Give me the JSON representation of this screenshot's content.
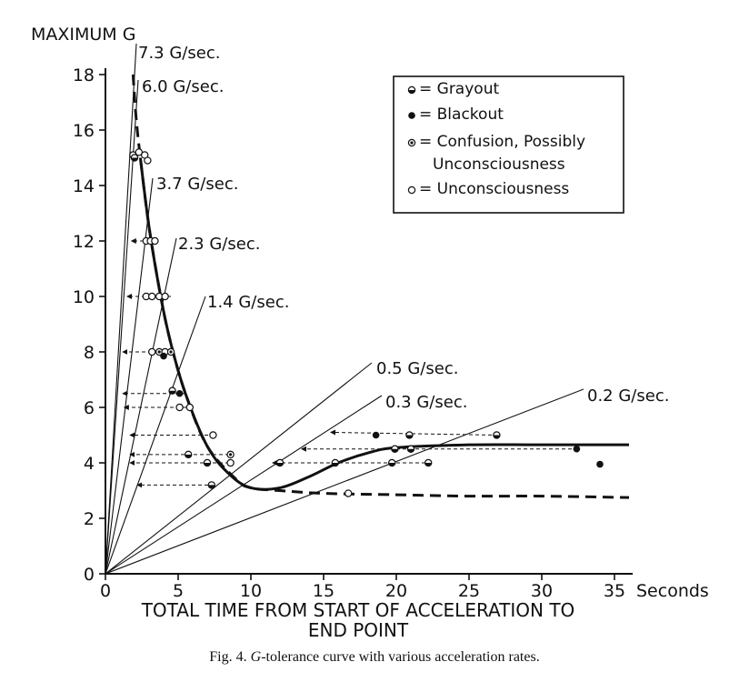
{
  "chart_data": {
    "type": "line",
    "ylabel": "MAXIMUM G",
    "xlabel": "TOTAL TIME FROM START OF ACCELERATION TO END POINT",
    "x_unit_label": "Seconds",
    "xlim": [
      0,
      35
    ],
    "ylim": [
      0,
      18
    ],
    "x_ticks": [
      0,
      5,
      10,
      15,
      20,
      25,
      30,
      35
    ],
    "y_ticks": [
      0,
      2,
      4,
      6,
      8,
      10,
      12,
      14,
      16,
      18
    ],
    "rate_lines": [
      {
        "label": "7.3 G/sec.",
        "rate": 7.3
      },
      {
        "label": "6.0 G/sec.",
        "rate": 6.0
      },
      {
        "label": "3.7 G/sec.",
        "rate": 3.7
      },
      {
        "label": "2.3 G/sec.",
        "rate": 2.3
      },
      {
        "label": "1.4 G/sec.",
        "rate": 1.4
      },
      {
        "label": "0.5 G/sec.",
        "rate": 0.5
      },
      {
        "label": "0.3 G/sec.",
        "rate": 0.3
      },
      {
        "label": "0.2 G/sec.",
        "rate": 0.2
      }
    ],
    "series": [
      {
        "name": "Tolerance curve (rapid onset, dashed)",
        "style": "dashed",
        "points": [
          [
            1.9,
            18
          ],
          [
            2.1,
            16.5
          ],
          [
            2.4,
            15
          ],
          [
            3.0,
            12.5
          ],
          [
            3.8,
            10
          ],
          [
            4.5,
            8.3
          ],
          [
            5.5,
            6.5
          ],
          [
            7,
            4.6
          ],
          [
            9,
            3.4
          ],
          [
            10,
            3.1
          ],
          [
            12,
            3.0
          ],
          [
            15,
            2.9
          ],
          [
            20,
            2.85
          ],
          [
            25,
            2.8
          ],
          [
            30,
            2.8
          ],
          [
            36,
            2.75
          ]
        ]
      },
      {
        "name": "Tolerance curve (gradual onset, solid)",
        "style": "solid",
        "points": [
          [
            2.4,
            15
          ],
          [
            3.0,
            12.5
          ],
          [
            3.8,
            10
          ],
          [
            4.5,
            8.3
          ],
          [
            5.5,
            6.5
          ],
          [
            7,
            4.6
          ],
          [
            8.5,
            3.6
          ],
          [
            10,
            3.1
          ],
          [
            12,
            3.1
          ],
          [
            14,
            3.5
          ],
          [
            16,
            4.0
          ],
          [
            18,
            4.35
          ],
          [
            20,
            4.55
          ],
          [
            25,
            4.65
          ],
          [
            30,
            4.65
          ],
          [
            36,
            4.65
          ]
        ]
      }
    ],
    "arrows": [
      [
        [
          3.5,
          12
        ],
        [
          1.8,
          12
        ]
      ],
      [
        [
          4.5,
          10
        ],
        [
          1.5,
          10
        ]
      ],
      [
        [
          4.5,
          8
        ],
        [
          1.2,
          8
        ]
      ],
      [
        [
          5.5,
          6.5
        ],
        [
          1.2,
          6.5
        ]
      ],
      [
        [
          6.0,
          6.0
        ],
        [
          1.3,
          6.0
        ]
      ],
      [
        [
          7.5,
          5.0
        ],
        [
          1.7,
          5.0
        ]
      ],
      [
        [
          8.5,
          4.3
        ],
        [
          1.7,
          4.3
        ]
      ],
      [
        [
          8.5,
          4.0
        ],
        [
          1.7,
          4.0
        ]
      ],
      [
        [
          7.5,
          3.2
        ],
        [
          2.2,
          3.2
        ]
      ],
      [
        [
          27,
          5.0
        ],
        [
          15.5,
          5.1
        ]
      ],
      [
        [
          32.5,
          4.5
        ],
        [
          13.5,
          4.5
        ]
      ],
      [
        [
          22,
          4.0
        ],
        [
          11.5,
          4.0
        ]
      ]
    ],
    "markers": [
      {
        "type": "unconsciousness",
        "x": 1.9,
        "y": 15.1
      },
      {
        "type": "unconsciousness",
        "x": 2.3,
        "y": 15.2
      },
      {
        "type": "unconsciousness",
        "x": 2.7,
        "y": 15.1
      },
      {
        "type": "unconsciousness",
        "x": 2.9,
        "y": 14.9
      },
      {
        "type": "grayout",
        "x": 2.0,
        "y": 15.0
      },
      {
        "type": "unconsciousness",
        "x": 2.8,
        "y": 12.0
      },
      {
        "type": "unconsciousness",
        "x": 3.1,
        "y": 12.0
      },
      {
        "type": "unconsciousness",
        "x": 3.4,
        "y": 12.0
      },
      {
        "type": "unconsciousness",
        "x": 2.8,
        "y": 10.0
      },
      {
        "type": "unconsciousness",
        "x": 3.2,
        "y": 10.0
      },
      {
        "type": "unconsciousness",
        "x": 3.7,
        "y": 10.0
      },
      {
        "type": "unconsciousness",
        "x": 4.1,
        "y": 10.0
      },
      {
        "type": "unconsciousness",
        "x": 3.2,
        "y": 8.0
      },
      {
        "type": "confusion",
        "x": 3.7,
        "y": 8.0
      },
      {
        "type": "unconsciousness",
        "x": 4.1,
        "y": 8.0
      },
      {
        "type": "confusion",
        "x": 4.5,
        "y": 8.0
      },
      {
        "type": "blackout",
        "x": 4.0,
        "y": 7.85
      },
      {
        "type": "grayout",
        "x": 4.6,
        "y": 6.6
      },
      {
        "type": "blackout",
        "x": 5.1,
        "y": 6.5
      },
      {
        "type": "unconsciousness",
        "x": 5.1,
        "y": 6.0
      },
      {
        "type": "unconsciousness",
        "x": 5.8,
        "y": 6.0
      },
      {
        "type": "unconsciousness",
        "x": 7.4,
        "y": 5.0
      },
      {
        "type": "grayout",
        "x": 5.7,
        "y": 4.3
      },
      {
        "type": "confusion",
        "x": 8.6,
        "y": 4.3
      },
      {
        "type": "grayout",
        "x": 7.0,
        "y": 4.0
      },
      {
        "type": "unconsciousness",
        "x": 8.6,
        "y": 4.0
      },
      {
        "type": "grayout",
        "x": 7.3,
        "y": 3.2
      },
      {
        "type": "grayout",
        "x": 12.0,
        "y": 4.0
      },
      {
        "type": "grayout",
        "x": 15.8,
        "y": 4.0
      },
      {
        "type": "unconsciousness",
        "x": 16.7,
        "y": 2.9
      },
      {
        "type": "blackout",
        "x": 18.6,
        "y": 5.0
      },
      {
        "type": "grayout",
        "x": 20.9,
        "y": 5.0
      },
      {
        "type": "grayout",
        "x": 26.9,
        "y": 5.0
      },
      {
        "type": "grayout",
        "x": 19.9,
        "y": 4.5
      },
      {
        "type": "grayout",
        "x": 21.0,
        "y": 4.5
      },
      {
        "type": "blackout",
        "x": 32.4,
        "y": 4.5
      },
      {
        "type": "grayout",
        "x": 19.7,
        "y": 4.0
      },
      {
        "type": "grayout",
        "x": 22.2,
        "y": 4.0
      },
      {
        "type": "blackout",
        "x": 34.0,
        "y": 3.95
      }
    ],
    "legend": {
      "position": "top-right",
      "items": [
        {
          "type": "grayout",
          "label": "= Grayout"
        },
        {
          "type": "blackout",
          "label": "= Blackout"
        },
        {
          "type": "confusion",
          "label": "= Confusion, Possibly",
          "label2": "Unconsciousness"
        },
        {
          "type": "unconsciousness",
          "label": "= Unconsciousness"
        }
      ]
    }
  },
  "caption": {
    "prefix": "Fig. 4.",
    "italic": "G",
    "rest": "-tolerance curve with various acceleration rates."
  }
}
